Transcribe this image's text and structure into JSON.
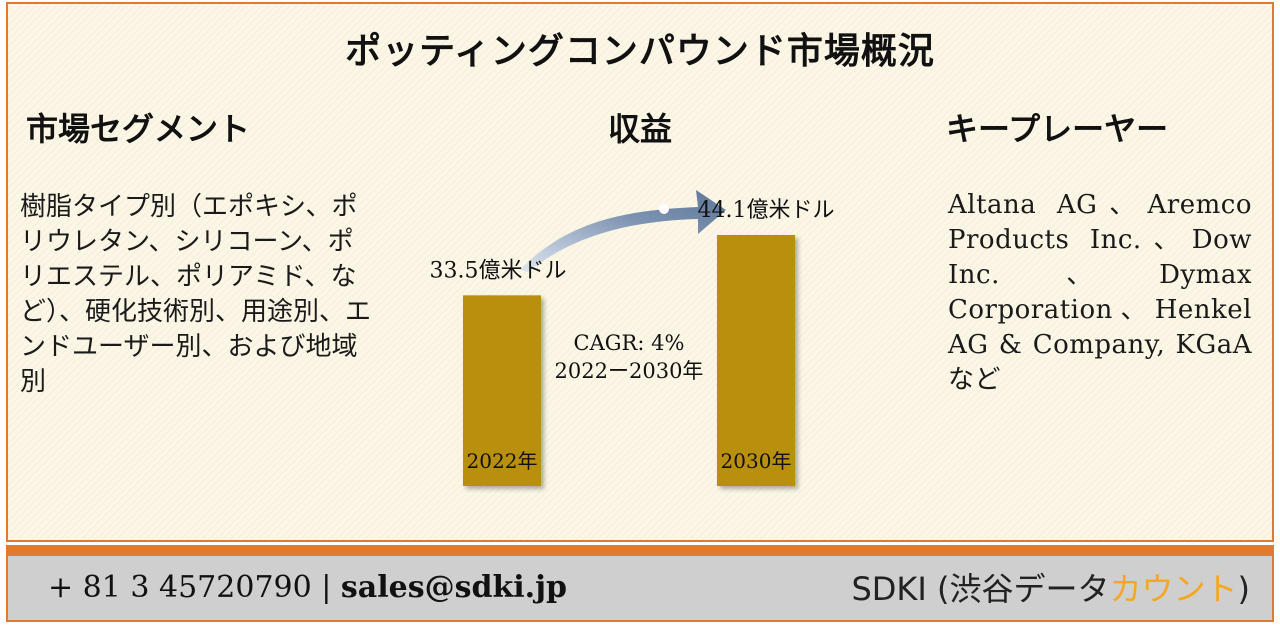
{
  "title": "ポッティングコンパウンド市場概況",
  "segments": {
    "heading": "市場セグメント",
    "body": "樹脂タイプ別（エポキシ、ポリウレタン、シリコーン、ポリエステル、ポリアミド、など）、硬化技術別、用途別、エンドユーザー別、および地域別"
  },
  "revenue": {
    "heading": "収益",
    "cagr": "CAGR: 4%",
    "period": "2022ー2030年"
  },
  "key_players": {
    "heading": "キープレーヤー",
    "body": "Altana AG、Aremco Products Inc.、Dow Inc.、Dymax Corporation、Henkel AG & Company, KGaA など"
  },
  "chart_data": {
    "type": "bar",
    "categories": [
      "2022年",
      "2030年"
    ],
    "values": [
      33.5,
      44.1
    ],
    "value_labels": [
      "33.5億米ドル",
      "44.1億米ドル"
    ],
    "unit": "億米ドル",
    "bar_color": "#b8900a"
  },
  "footer": {
    "phone": "+ 81 3 45720790",
    "separator": "|",
    "email": "sales@sdki.jp",
    "brand_main": "SDKI (渋谷データ",
    "brand_accent": "カウント",
    "brand_close": ")",
    "accent_color": "#f5a623",
    "border_color": "#e07a2e"
  }
}
